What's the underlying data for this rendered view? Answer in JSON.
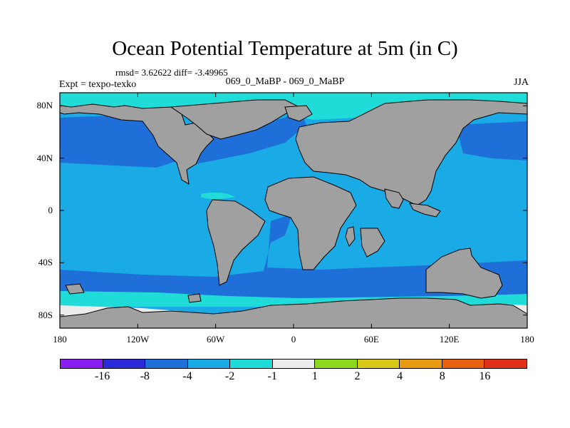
{
  "title": "Ocean Potential Temperature at 5m (in C)",
  "stats": "rmsd= 3.62622 diff= -3.49965",
  "subtitle": "069_0_MaBP - 069_0_MaBP",
  "expt": "Expt = texpo-texko",
  "season": "JJA",
  "map": {
    "projection": "cylindrical-equidistant",
    "lon_range": [
      -180,
      180
    ],
    "lat_range": [
      -90,
      90
    ],
    "land_color": "#a0a0a0",
    "y_ticks": [
      {
        "lat": 80,
        "label": "80N"
      },
      {
        "lat": 40,
        "label": "40N"
      },
      {
        "lat": 0,
        "label": "0"
      },
      {
        "lat": -40,
        "label": "40S"
      },
      {
        "lat": -80,
        "label": "80S"
      }
    ],
    "x_ticks": [
      {
        "lon": -180,
        "label": "180"
      },
      {
        "lon": -120,
        "label": "120W"
      },
      {
        "lon": -60,
        "label": "60W"
      },
      {
        "lon": 0,
        "label": "0"
      },
      {
        "lon": 60,
        "label": "60E"
      },
      {
        "lon": 120,
        "label": "120E"
      },
      {
        "lon": 180,
        "label": "180"
      }
    ]
  },
  "colorbar": {
    "colors": [
      "#8a1ef0",
      "#2a2ad8",
      "#1f6fd8",
      "#1aaae6",
      "#20dcd8",
      "#ececec",
      "#8cd81c",
      "#d8c818",
      "#e89a10",
      "#e66010",
      "#e0321a"
    ],
    "labels": [
      "-16",
      "-8",
      "-4",
      "-2",
      "-1",
      "1",
      "2",
      "4",
      "8",
      "16"
    ]
  }
}
